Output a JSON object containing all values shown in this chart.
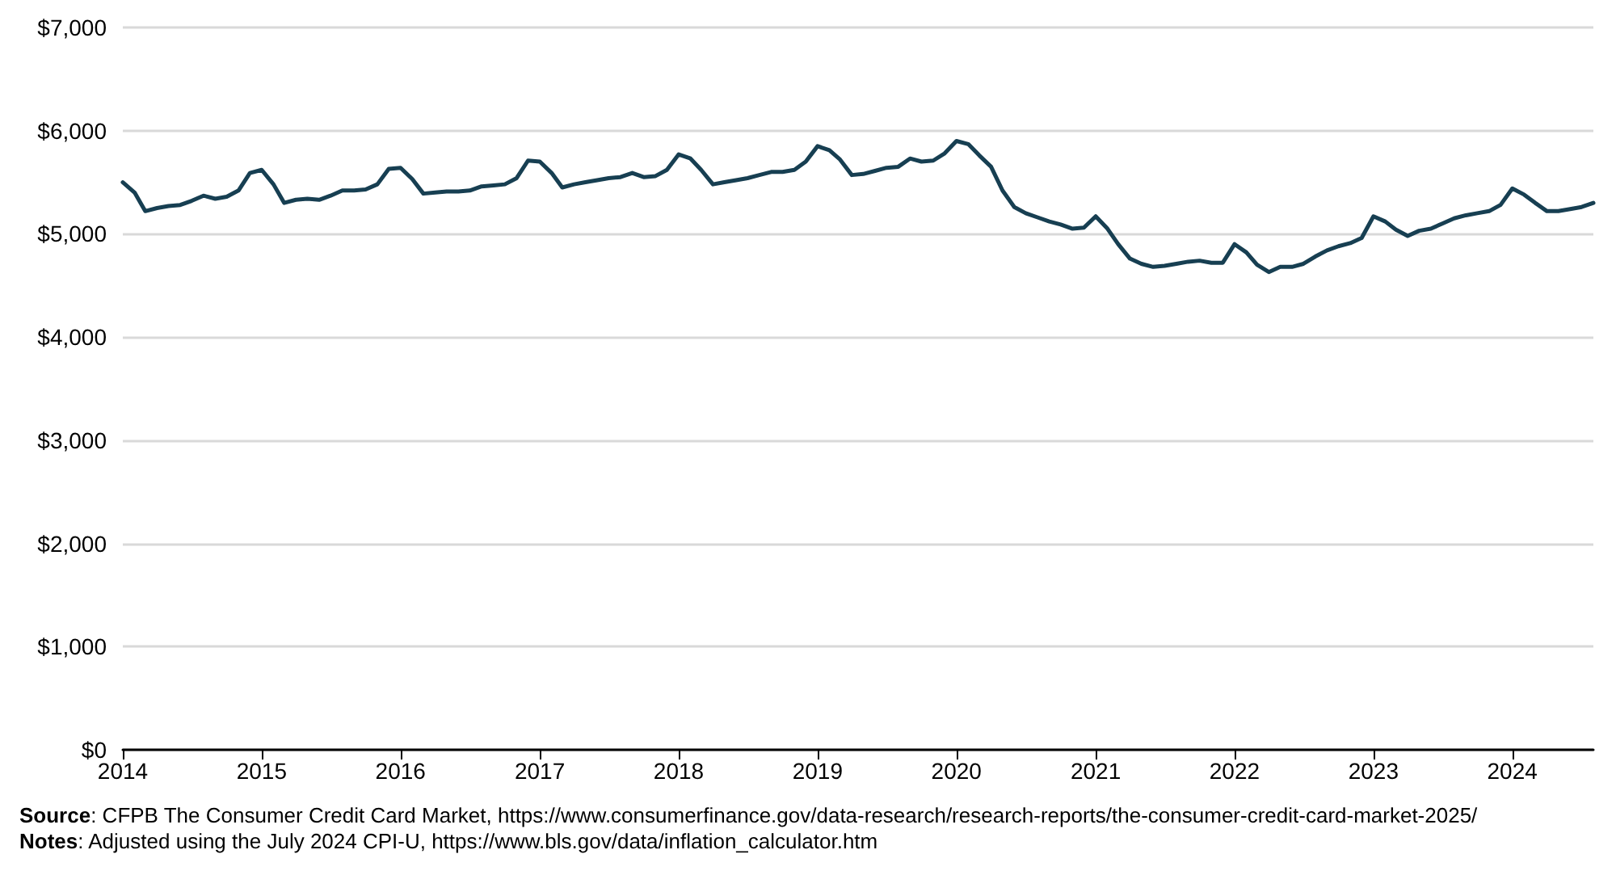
{
  "chart_data": {
    "type": "line",
    "x": [
      "2014-01",
      "2014-02",
      "2014-03",
      "2014-04",
      "2014-05",
      "2014-06",
      "2014-07",
      "2014-08",
      "2014-09",
      "2014-10",
      "2014-11",
      "2014-12",
      "2015-01",
      "2015-02",
      "2015-03",
      "2015-04",
      "2015-05",
      "2015-06",
      "2015-07",
      "2015-08",
      "2015-09",
      "2015-10",
      "2015-11",
      "2015-12",
      "2016-01",
      "2016-02",
      "2016-03",
      "2016-04",
      "2016-05",
      "2016-06",
      "2016-07",
      "2016-08",
      "2016-09",
      "2016-10",
      "2016-11",
      "2016-12",
      "2017-01",
      "2017-02",
      "2017-03",
      "2017-04",
      "2017-05",
      "2017-06",
      "2017-07",
      "2017-08",
      "2017-09",
      "2017-10",
      "2017-11",
      "2017-12",
      "2018-01",
      "2018-02",
      "2018-03",
      "2018-04",
      "2018-05",
      "2018-06",
      "2018-07",
      "2018-08",
      "2018-09",
      "2018-10",
      "2018-11",
      "2018-12",
      "2019-01",
      "2019-02",
      "2019-03",
      "2019-04",
      "2019-05",
      "2019-06",
      "2019-07",
      "2019-08",
      "2019-09",
      "2019-10",
      "2019-11",
      "2019-12",
      "2020-01",
      "2020-02",
      "2020-03",
      "2020-04",
      "2020-05",
      "2020-06",
      "2020-07",
      "2020-08",
      "2020-09",
      "2020-10",
      "2020-11",
      "2020-12",
      "2021-01",
      "2021-02",
      "2021-03",
      "2021-04",
      "2021-05",
      "2021-06",
      "2021-07",
      "2021-08",
      "2021-09",
      "2021-10",
      "2021-11",
      "2021-12",
      "2022-01",
      "2022-02",
      "2022-03",
      "2022-04",
      "2022-05",
      "2022-06",
      "2022-07",
      "2022-08",
      "2022-09",
      "2022-10",
      "2022-11",
      "2022-12",
      "2023-01",
      "2023-02",
      "2023-03",
      "2023-04",
      "2023-05",
      "2023-06",
      "2023-07",
      "2023-08",
      "2023-09",
      "2023-10",
      "2023-11",
      "2023-12",
      "2024-01",
      "2024-02",
      "2024-03",
      "2024-04",
      "2024-05",
      "2024-06",
      "2024-07",
      "2024-08"
    ],
    "series": [
      {
        "color": "#173f52",
        "values": [
          5500,
          5400,
          5220,
          5250,
          5270,
          5280,
          5320,
          5370,
          5340,
          5360,
          5420,
          5590,
          5620,
          5480,
          5300,
          5330,
          5340,
          5330,
          5370,
          5420,
          5420,
          5430,
          5480,
          5630,
          5640,
          5530,
          5390,
          5400,
          5410,
          5410,
          5420,
          5460,
          5470,
          5480,
          5540,
          5710,
          5700,
          5590,
          5450,
          5480,
          5500,
          5520,
          5540,
          5550,
          5590,
          5550,
          5560,
          5620,
          5770,
          5730,
          5620,
          5480,
          5500,
          5520,
          5540,
          5570,
          5600,
          5600,
          5620,
          5700,
          5850,
          5810,
          5720,
          5570,
          5580,
          5610,
          5640,
          5650,
          5730,
          5700,
          5710,
          5780,
          5900,
          5870,
          5760,
          5650,
          5420,
          5260,
          5200,
          5160,
          5120,
          5090,
          5050,
          5060,
          5170,
          5050,
          4900,
          4760,
          4710,
          4680,
          4690,
          4710,
          4730,
          4740,
          4720,
          4720,
          4900,
          4820,
          4700,
          4630,
          4680,
          4680,
          4710,
          4780,
          4840,
          4880,
          4910,
          4960,
          5170,
          5120,
          5040,
          4980,
          5030,
          5050,
          5100,
          5150,
          5180,
          5200,
          5220,
          5280,
          5440,
          5380,
          5300,
          5220,
          5220,
          5240,
          5260,
          5300
        ]
      }
    ],
    "xlim": [
      "2014-01",
      "2024-08"
    ],
    "xticks": [
      {
        "value": "2014-01",
        "label": "2014"
      },
      {
        "value": "2015-01",
        "label": "2015"
      },
      {
        "value": "2016-01",
        "label": "2016"
      },
      {
        "value": "2017-01",
        "label": "2017"
      },
      {
        "value": "2018-01",
        "label": "2018"
      },
      {
        "value": "2019-01",
        "label": "2019"
      },
      {
        "value": "2020-01",
        "label": "2020"
      },
      {
        "value": "2021-01",
        "label": "2021"
      },
      {
        "value": "2022-01",
        "label": "2022"
      },
      {
        "value": "2023-01",
        "label": "2023"
      },
      {
        "value": "2024-01",
        "label": "2024"
      }
    ],
    "ylim": [
      0,
      7000
    ],
    "yticks": [
      {
        "value": 0,
        "label": "$0"
      },
      {
        "value": 1000,
        "label": "$1,000"
      },
      {
        "value": 2000,
        "label": "$2,000"
      },
      {
        "value": 3000,
        "label": "$3,000"
      },
      {
        "value": 4000,
        "label": "$4,000"
      },
      {
        "value": 5000,
        "label": "$5,000"
      },
      {
        "value": 6000,
        "label": "$6,000"
      },
      {
        "value": 7000,
        "label": "$7,000"
      }
    ],
    "grid": "y",
    "marker": "none",
    "line_style": "solid",
    "annotations": [
      "Source: CFPB The Consumer Credit Card Market, https://www.consumerfinance.gov/data-research/research-reports/the-consumer-credit-card-market-2025/",
      "Notes: Adjusted using the July 2024 CPI-U, https://www.bls.gov/data/inflation_calculator.htm"
    ]
  }
}
